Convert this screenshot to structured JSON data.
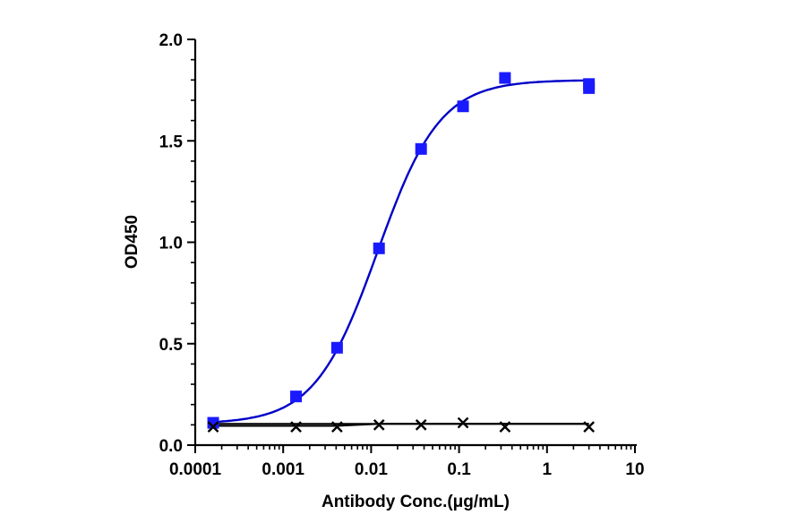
{
  "chart_data": {
    "type": "scatter",
    "title": "",
    "xlabel": "Antibody Conc.(μg/mL)",
    "ylabel": "OD450",
    "x_scale": "log",
    "xlim": [
      0.0001,
      10
    ],
    "ylim": [
      0,
      2.0
    ],
    "x_ticks": [
      "0.0001",
      "0.001",
      "0.01",
      "0.1",
      "1",
      "10"
    ],
    "y_ticks": [
      "0.0",
      "0.5",
      "1.0",
      "1.5",
      "2.0"
    ],
    "grid": false,
    "legend": "none",
    "series": [
      {
        "marker": "square",
        "color": "#1a1aff",
        "fit": "4PL",
        "fit_color": "#0000c8",
        "x": [
          0.00016,
          0.0014,
          0.0041,
          0.0123,
          0.037,
          0.111,
          0.333,
          3.0,
          3.0
        ],
        "y": [
          0.11,
          0.24,
          0.48,
          0.97,
          1.46,
          1.67,
          1.81,
          1.78,
          1.76
        ]
      },
      {
        "marker": "x",
        "color": "#000000",
        "fit": "line",
        "fit_color": "#000000",
        "x": [
          0.00016,
          0.0014,
          0.0041,
          0.0123,
          0.037,
          0.111,
          0.333,
          3.0
        ],
        "y": [
          0.09,
          0.09,
          0.09,
          0.1,
          0.1,
          0.11,
          0.09,
          0.09
        ]
      }
    ]
  }
}
